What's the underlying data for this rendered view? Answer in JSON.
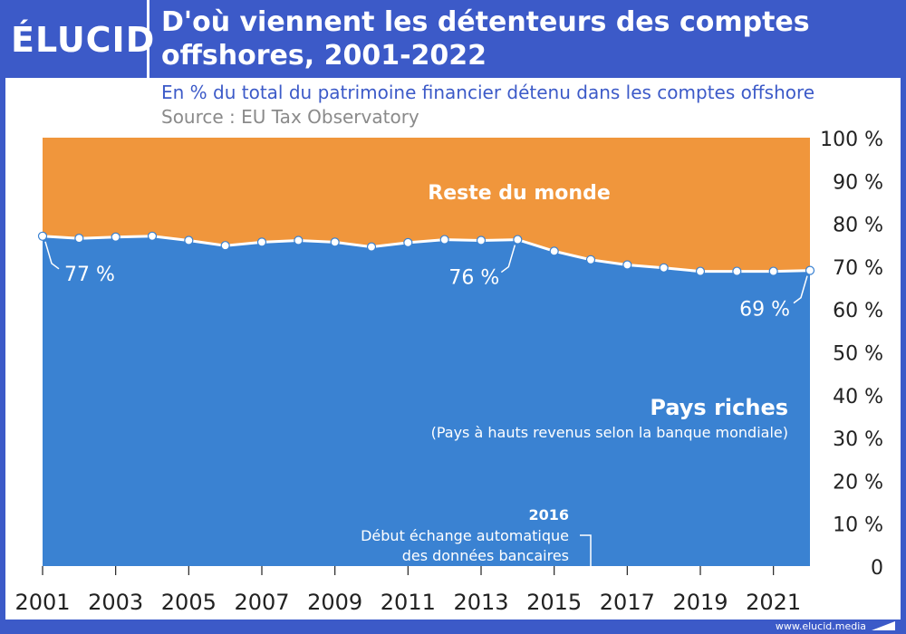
{
  "brand": {
    "logo": "ÉLUCID",
    "url": "www.elucid.media"
  },
  "colors": {
    "header": "#3c5ac8",
    "rich": "#3a82d2",
    "rest": "#f0963c",
    "line": "#ffffff"
  },
  "chart_data": {
    "type": "area",
    "title": "D'où viennent les détenteurs des comptes offshores, 2001-2022",
    "subtitle": "En % du total du patrimoine financier détenu dans les comptes offshore",
    "source": "Source : EU Tax Observatory",
    "x": [
      2001,
      2002,
      2003,
      2004,
      2005,
      2006,
      2007,
      2008,
      2009,
      2010,
      2011,
      2012,
      2013,
      2014,
      2015,
      2016,
      2017,
      2018,
      2019,
      2020,
      2021,
      2022
    ],
    "series": [
      {
        "name": "Pays riches",
        "values": [
          77,
          76.5,
          76.8,
          77,
          76,
          74.8,
          75.6,
          76,
          75.6,
          74.5,
          75.5,
          76.2,
          76,
          76.2,
          73.5,
          71.5,
          70.3,
          69.6,
          68.8,
          68.8,
          68.8,
          69
        ]
      },
      {
        "name": "Reste du monde",
        "values": [
          23,
          23.5,
          23.2,
          23,
          24,
          25.2,
          24.4,
          24,
          24.4,
          25.5,
          24.5,
          23.8,
          24,
          23.8,
          26.5,
          28.5,
          29.7,
          30.4,
          31.2,
          31.2,
          31.2,
          31
        ]
      }
    ],
    "series_note": "(Pays à hauts revenus selon la banque mondiale)",
    "xtick_labels": [
      "2001",
      "2003",
      "2005",
      "2007",
      "2009",
      "2011",
      "2013",
      "2015",
      "2017",
      "2019",
      "2021"
    ],
    "xtick_values": [
      2001,
      2003,
      2005,
      2007,
      2009,
      2011,
      2013,
      2015,
      2017,
      2019,
      2021
    ],
    "ytick_labels": [
      "0",
      "10 %",
      "20 %",
      "30 %",
      "40 %",
      "50 %",
      "60 %",
      "70 %",
      "80 %",
      "90 %",
      "100 %"
    ],
    "ytick_values": [
      0,
      10,
      20,
      30,
      40,
      50,
      60,
      70,
      80,
      90,
      100
    ],
    "ylim": [
      0,
      100
    ],
    "xlim": [
      2001,
      2022
    ],
    "data_labels": [
      {
        "x": 2001,
        "y": 77,
        "text": "77 %"
      },
      {
        "x": 2014,
        "y": 76,
        "text": "76 %"
      },
      {
        "x": 2022,
        "y": 69,
        "text": "69 %"
      }
    ],
    "annotation": {
      "x": 2016,
      "year": "2016",
      "line1": "Début échange automatique",
      "line2": "des données bancaires"
    },
    "legend_placement": "inline"
  }
}
